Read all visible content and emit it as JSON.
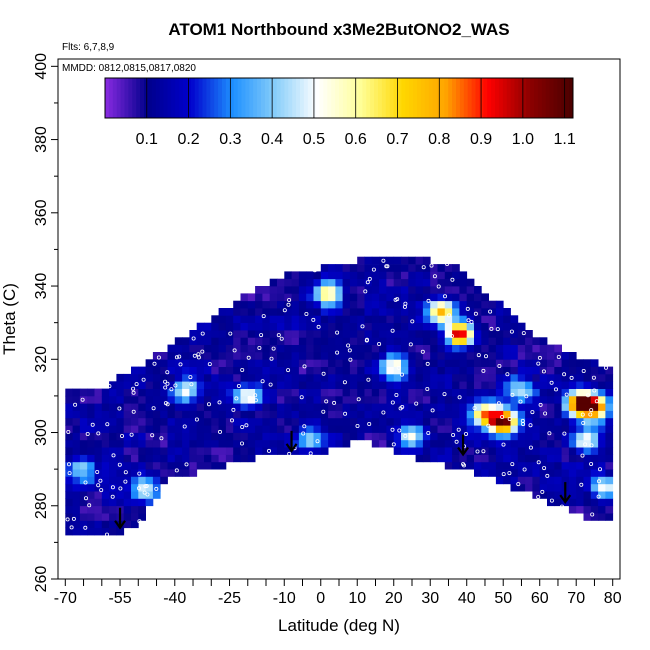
{
  "chart_data": {
    "type": "heatmap",
    "title": "ATOM1 Northbound x3Me2ButONO2_WAS",
    "flights_label": "Flts: 6,7,8,9",
    "dates_label": "MMDD: 0812,0815,0817,0820",
    "xlabel": "Latitude (deg N)",
    "ylabel": "Theta (C)",
    "xlim": [
      -72,
      82
    ],
    "ylim": [
      260,
      402
    ],
    "x_ticks": [
      -70,
      -55,
      -40,
      -25,
      -10,
      0,
      10,
      20,
      30,
      40,
      50,
      60,
      70,
      80
    ],
    "y_ticks": [
      260,
      280,
      300,
      320,
      340,
      360,
      380,
      400
    ],
    "colorbar": {
      "min": 0.0,
      "max": 1.12,
      "ticks": [
        0.1,
        0.2,
        0.3,
        0.4,
        0.5,
        0.6,
        0.7,
        0.8,
        0.9,
        1.0,
        1.1
      ],
      "tick_labels": [
        "0.1",
        "0.2",
        "0.3",
        "0.4",
        "0.5",
        "0.6",
        "0.7",
        "0.8",
        "0.9",
        "1.0",
        "1.1"
      ],
      "colors": [
        "#8a2be2",
        "#00008b",
        "#0000cd",
        "#1e90ff",
        "#87cefa",
        "#ffffff",
        "#ffff99",
        "#ffd700",
        "#ffa500",
        "#ff0000",
        "#8b0000",
        "#4a0000"
      ]
    },
    "data_region": {
      "lower_boundary": [
        [
          -70,
          272
        ],
        [
          -57,
          272
        ],
        [
          -50,
          275
        ],
        [
          -42,
          287
        ],
        [
          -30,
          290
        ],
        [
          -15,
          294
        ],
        [
          -2,
          294
        ],
        [
          10,
          298
        ],
        [
          20,
          295
        ],
        [
          30,
          292
        ],
        [
          40,
          290
        ],
        [
          60,
          282
        ],
        [
          72,
          277
        ],
        [
          80,
          277
        ]
      ],
      "upper_boundary": [
        [
          -70,
          312
        ],
        [
          -60,
          312
        ],
        [
          -50,
          318
        ],
        [
          -40,
          325
        ],
        [
          -30,
          331
        ],
        [
          -20,
          338
        ],
        [
          -10,
          343
        ],
        [
          0,
          345
        ],
        [
          10,
          347
        ],
        [
          20,
          347
        ],
        [
          30,
          347
        ],
        [
          36,
          346
        ],
        [
          42,
          340
        ],
        [
          50,
          335
        ],
        [
          60,
          326
        ],
        [
          70,
          321
        ],
        [
          80,
          318
        ]
      ]
    },
    "hotspots": [
      {
        "lat": 50,
        "theta": 303,
        "value": 0.95
      },
      {
        "lat": 45,
        "theta": 305,
        "value": 0.7
      },
      {
        "lat": 38,
        "theta": 327,
        "value": 0.85
      },
      {
        "lat": 33,
        "theta": 333,
        "value": 0.6
      },
      {
        "lat": 71,
        "theta": 308,
        "value": 0.9
      },
      {
        "lat": 75,
        "theta": 307,
        "value": 0.85
      },
      {
        "lat": 73,
        "theta": 298,
        "value": 0.45
      },
      {
        "lat": 25,
        "theta": 299,
        "value": 0.45
      },
      {
        "lat": 20,
        "theta": 318,
        "value": 0.45
      },
      {
        "lat": 2,
        "theta": 338,
        "value": 0.5
      },
      {
        "lat": -20,
        "theta": 310,
        "value": 0.4
      },
      {
        "lat": -65,
        "theta": 290,
        "value": 0.35
      },
      {
        "lat": -48,
        "theta": 285,
        "value": 0.4
      },
      {
        "lat": -37,
        "theta": 312,
        "value": 0.4
      },
      {
        "lat": -3,
        "theta": 298,
        "value": 0.3
      },
      {
        "lat": 78,
        "theta": 285,
        "value": 0.4
      },
      {
        "lat": 55,
        "theta": 312,
        "value": 0.35
      }
    ],
    "arrows": [
      {
        "lat": -55,
        "theta": 274
      },
      {
        "lat": -8,
        "theta": 295
      },
      {
        "lat": 39,
        "theta": 294
      },
      {
        "lat": 67,
        "theta": 281
      }
    ]
  }
}
